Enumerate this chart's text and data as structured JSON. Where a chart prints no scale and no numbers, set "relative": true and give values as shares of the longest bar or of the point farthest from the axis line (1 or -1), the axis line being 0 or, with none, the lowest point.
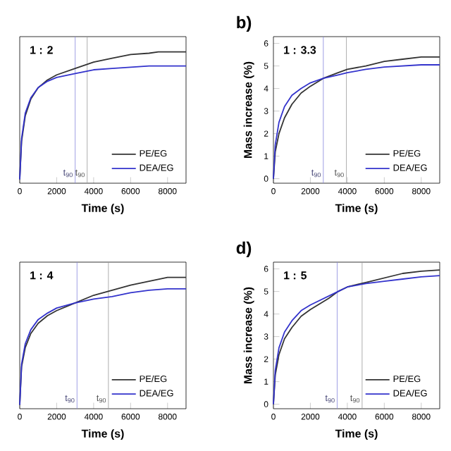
{
  "chart_data": [
    {
      "type": "line",
      "relative": true,
      "xlabel": "Time (s)",
      "xlim": [
        0,
        9000
      ],
      "xticks": [
        0,
        2000,
        4000,
        6000,
        8000
      ],
      "legend": "bottom right",
      "annotations": [
        "1 : 2"
      ],
      "x": [
        0,
        100,
        300,
        600,
        1000,
        1500,
        2000,
        3000,
        4000,
        5000,
        6000,
        7000,
        7500,
        9000
      ],
      "series": [
        {
          "name": "PE/EG",
          "color": "#333333",
          "values": [
            0,
            0.3,
            0.5,
            0.63,
            0.72,
            0.78,
            0.82,
            0.87,
            0.92,
            0.95,
            0.98,
            0.99,
            1,
            1
          ]
        },
        {
          "name": "DEA/EG",
          "color": "#3333cc",
          "values": [
            0,
            0.32,
            0.52,
            0.64,
            0.72,
            0.77,
            0.8,
            0.83,
            0.86,
            0.87,
            0.88,
            0.89,
            0.89,
            0.89
          ]
        }
      ],
      "ref_lines": [
        {
          "axis": "x",
          "value": 3000,
          "label": "t$_{90}$",
          "color": "#8888dd"
        },
        {
          "axis": "x",
          "value": 3650,
          "label": "t$_{90}$",
          "color": "#999999"
        }
      ]
    },
    {
      "type": "line",
      "title": "b)",
      "xlabel": "Time (s)",
      "ylabel": "Mass increase (%)",
      "xlim": [
        0,
        9000
      ],
      "xticks": [
        0,
        2000,
        4000,
        6000,
        8000
      ],
      "ylim": [
        -0.2,
        6.3
      ],
      "yticks": [
        0,
        1,
        2,
        3,
        4,
        5,
        6
      ],
      "legend": "bottom right",
      "annotations": [
        "1 : 3.3"
      ],
      "x": [
        0,
        100,
        300,
        600,
        1000,
        1500,
        2000,
        2700,
        3500,
        4000,
        5000,
        6000,
        7000,
        8000,
        9000
      ],
      "series": [
        {
          "name": "PE/EG",
          "color": "#333333",
          "values": [
            0,
            1.2,
            2.0,
            2.7,
            3.3,
            3.8,
            4.1,
            4.45,
            4.7,
            4.85,
            5.0,
            5.2,
            5.3,
            5.4,
            5.4
          ]
        },
        {
          "name": "DEA/EG",
          "color": "#3333cc",
          "values": [
            0,
            1.5,
            2.5,
            3.2,
            3.7,
            4.0,
            4.25,
            4.45,
            4.6,
            4.7,
            4.85,
            4.95,
            5.0,
            5.05,
            5.05
          ]
        }
      ],
      "ref_lines": [
        {
          "axis": "x",
          "value": 2700,
          "label": "t$_{90}$",
          "color": "#8888dd"
        },
        {
          "axis": "x",
          "value": 3950,
          "label": "t$_{90}$",
          "color": "#999999"
        }
      ]
    },
    {
      "type": "line",
      "relative": true,
      "xlabel": "Time (s)",
      "xlim": [
        0,
        9000
      ],
      "xticks": [
        0,
        2000,
        4000,
        6000,
        8000
      ],
      "legend": "bottom right",
      "annotations": [
        "1 : 4"
      ],
      "x": [
        0,
        100,
        300,
        600,
        1000,
        1500,
        2000,
        3000,
        4000,
        5000,
        6000,
        7000,
        8000,
        9000
      ],
      "series": [
        {
          "name": "PE/EG",
          "color": "#333333",
          "values": [
            0,
            0.3,
            0.45,
            0.56,
            0.64,
            0.7,
            0.74,
            0.8,
            0.86,
            0.9,
            0.94,
            0.97,
            1,
            1
          ]
        },
        {
          "name": "DEA/EG",
          "color": "#3333cc",
          "values": [
            0,
            0.32,
            0.48,
            0.59,
            0.67,
            0.72,
            0.76,
            0.8,
            0.83,
            0.85,
            0.88,
            0.9,
            0.91,
            0.91
          ]
        }
      ],
      "ref_lines": [
        {
          "axis": "x",
          "value": 3100,
          "label": "t$_{90}$",
          "color": "#8888dd"
        },
        {
          "axis": "x",
          "value": 4800,
          "label": "t$_{90}$",
          "color": "#999999"
        }
      ]
    },
    {
      "type": "line",
      "title": "d)",
      "xlabel": "Time (s)",
      "ylabel": "Mass increase (%)",
      "xlim": [
        0,
        9000
      ],
      "xticks": [
        0,
        2000,
        4000,
        6000,
        8000
      ],
      "ylim": [
        -0.2,
        6.3
      ],
      "yticks": [
        0,
        1,
        2,
        3,
        4,
        5,
        6
      ],
      "legend": "bottom right",
      "annotations": [
        "1 : 5"
      ],
      "x": [
        0,
        100,
        300,
        600,
        1000,
        1500,
        2000,
        3000,
        3500,
        4000,
        5000,
        6000,
        7000,
        8000,
        9000
      ],
      "series": [
        {
          "name": "PE/EG",
          "color": "#333333",
          "values": [
            0,
            1.3,
            2.2,
            2.9,
            3.4,
            3.9,
            4.2,
            4.7,
            5.0,
            5.2,
            5.4,
            5.6,
            5.8,
            5.9,
            5.95
          ]
        },
        {
          "name": "DEA/EG",
          "color": "#3333cc",
          "values": [
            0,
            1.5,
            2.5,
            3.2,
            3.7,
            4.15,
            4.4,
            4.8,
            5.0,
            5.2,
            5.35,
            5.45,
            5.55,
            5.65,
            5.7
          ]
        }
      ],
      "ref_lines": [
        {
          "axis": "x",
          "value": 3450,
          "label": "t$_{90}$",
          "color": "#8888dd"
        },
        {
          "axis": "x",
          "value": 4800,
          "label": "t$_{90}$",
          "color": "#999999"
        }
      ]
    }
  ]
}
